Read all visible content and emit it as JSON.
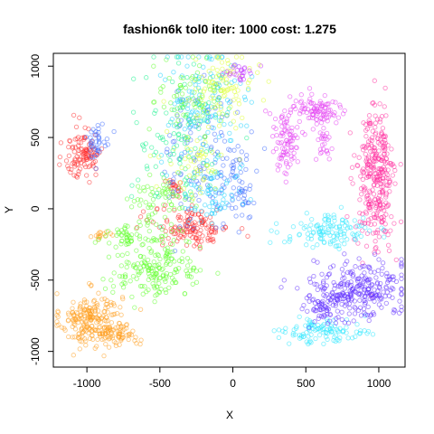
{
  "chart_data": {
    "type": "scatter",
    "title": "fashion6k tol0 iter: 1000 cost: 1.275",
    "xlabel": "X",
    "ylabel": "Y",
    "xlim": [
      -1230,
      1180
    ],
    "ylim": [
      -1110,
      1090
    ],
    "xticks": [
      -1000,
      -500,
      0,
      500,
      1000
    ],
    "xtick_labels": [
      "-1000",
      "-500",
      "0",
      "500",
      "1000"
    ],
    "yticks": [
      -1000,
      -500,
      0,
      500,
      1000
    ],
    "ytick_labels": [
      "-1000",
      "-500",
      "0",
      "500",
      "1000"
    ],
    "grid": false,
    "legend": "none",
    "marker": "open-circle",
    "clusters": [
      {
        "color": "#FF9E1F",
        "count": 230,
        "cx": -970,
        "cy": -780,
        "sx": 105,
        "sy": 95
      },
      {
        "color": "#FF9E1F",
        "count": 50,
        "cx": -760,
        "cy": -880,
        "sx": 60,
        "sy": 40
      },
      {
        "color": "#FF9E1F",
        "count": 15,
        "cx": -900,
        "cy": -190,
        "sx": 30,
        "sy": 15
      },
      {
        "color": "#FF2A2A",
        "count": 110,
        "cx": -1020,
        "cy": 390,
        "sx": 65,
        "sy": 95
      },
      {
        "color": "#FF2A2A",
        "count": 140,
        "cx": -280,
        "cy": -130,
        "sx": 130,
        "sy": 70
      },
      {
        "color": "#FF2A2A",
        "count": 20,
        "cx": -400,
        "cy": 150,
        "sx": 40,
        "sy": 30
      },
      {
        "color": "#3E6BFF",
        "count": 40,
        "cx": -930,
        "cy": 480,
        "sx": 40,
        "sy": 60
      },
      {
        "color": "#3E6BFF",
        "count": 140,
        "cx": -180,
        "cy": 350,
        "sx": 140,
        "sy": 260
      },
      {
        "color": "#3E6BFF",
        "count": 40,
        "cx": 50,
        "cy": 150,
        "sx": 50,
        "sy": 110
      },
      {
        "color": "#5FFF2A",
        "count": 170,
        "cx": -520,
        "cy": -440,
        "sx": 160,
        "sy": 90
      },
      {
        "color": "#5FFF2A",
        "count": 70,
        "cx": -680,
        "cy": -200,
        "sx": 130,
        "sy": 50
      },
      {
        "color": "#5FFF2A",
        "count": 60,
        "cx": -480,
        "cy": 60,
        "sx": 110,
        "sy": 80
      },
      {
        "color": "#5FFF2A",
        "count": 80,
        "cx": -300,
        "cy": 780,
        "sx": 110,
        "sy": 130
      },
      {
        "color": "#14F28C",
        "count": 110,
        "cx": -350,
        "cy": 500,
        "sx": 170,
        "sy": 260
      },
      {
        "color": "#1ED2FF",
        "count": 120,
        "cx": -180,
        "cy": 700,
        "sx": 160,
        "sy": 230
      },
      {
        "color": "#1ED2FF",
        "count": 60,
        "cx": -150,
        "cy": 100,
        "sx": 110,
        "sy": 90
      },
      {
        "color": "#DFFF2E",
        "count": 90,
        "cx": -60,
        "cy": 850,
        "sx": 100,
        "sy": 110
      },
      {
        "color": "#DFFF2E",
        "count": 50,
        "cx": -250,
        "cy": 300,
        "sx": 120,
        "sy": 110
      },
      {
        "color": "#C02EFF",
        "count": 25,
        "cx": 50,
        "cy": 960,
        "sx": 45,
        "sy": 30
      },
      {
        "color": "#E43DF2",
        "count": 90,
        "cx": 360,
        "cy": 480,
        "sx": 50,
        "sy": 130
      },
      {
        "color": "#E43DF2",
        "count": 90,
        "cx": 580,
        "cy": 690,
        "sx": 90,
        "sy": 60
      },
      {
        "color": "#E43DF2",
        "count": 25,
        "cx": 620,
        "cy": 460,
        "sx": 25,
        "sy": 70
      },
      {
        "color": "#FF2E9E",
        "count": 320,
        "cx": 980,
        "cy": 200,
        "sx": 65,
        "sy": 250
      },
      {
        "color": "#2EE8FF",
        "count": 120,
        "cx": 660,
        "cy": -160,
        "sx": 160,
        "sy": 60
      },
      {
        "color": "#2EE8FF",
        "count": 110,
        "cx": 640,
        "cy": -860,
        "sx": 140,
        "sy": 40
      },
      {
        "color": "#5F2EFF",
        "count": 260,
        "cx": 860,
        "cy": -560,
        "sx": 160,
        "sy": 100
      },
      {
        "color": "#5F2EFF",
        "count": 60,
        "cx": 620,
        "cy": -680,
        "sx": 70,
        "sy": 80
      }
    ]
  }
}
